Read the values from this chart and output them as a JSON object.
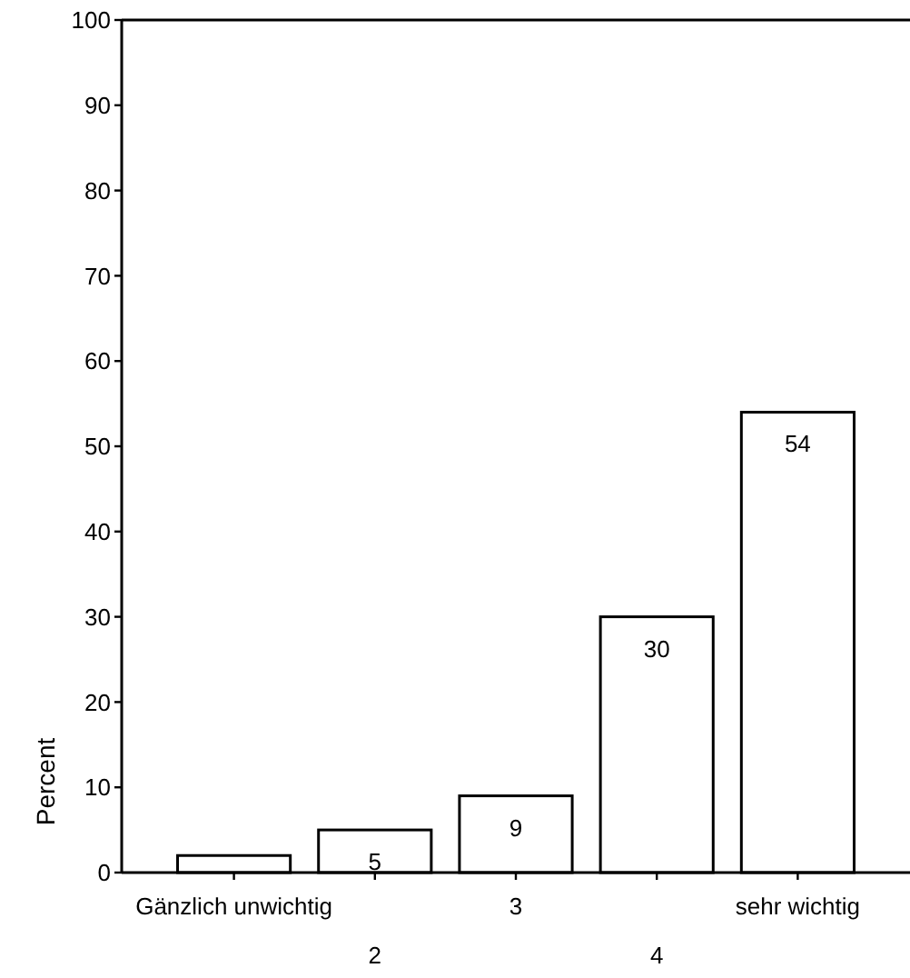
{
  "chart_data": {
    "type": "bar",
    "ylabel": "Percent",
    "categories": [
      "Gänzlich unwichtig",
      "2",
      "3",
      "4",
      "sehr wichtig"
    ],
    "values": [
      2,
      5,
      9,
      30,
      54
    ],
    "value_labels": [
      null,
      "5",
      "9",
      "30",
      "54"
    ],
    "color": "#ffffff",
    "ylim": [
      0,
      100
    ],
    "yticks": [
      0,
      10,
      20,
      30,
      40,
      50,
      60,
      70,
      80,
      90,
      100
    ],
    "grid": false
  }
}
